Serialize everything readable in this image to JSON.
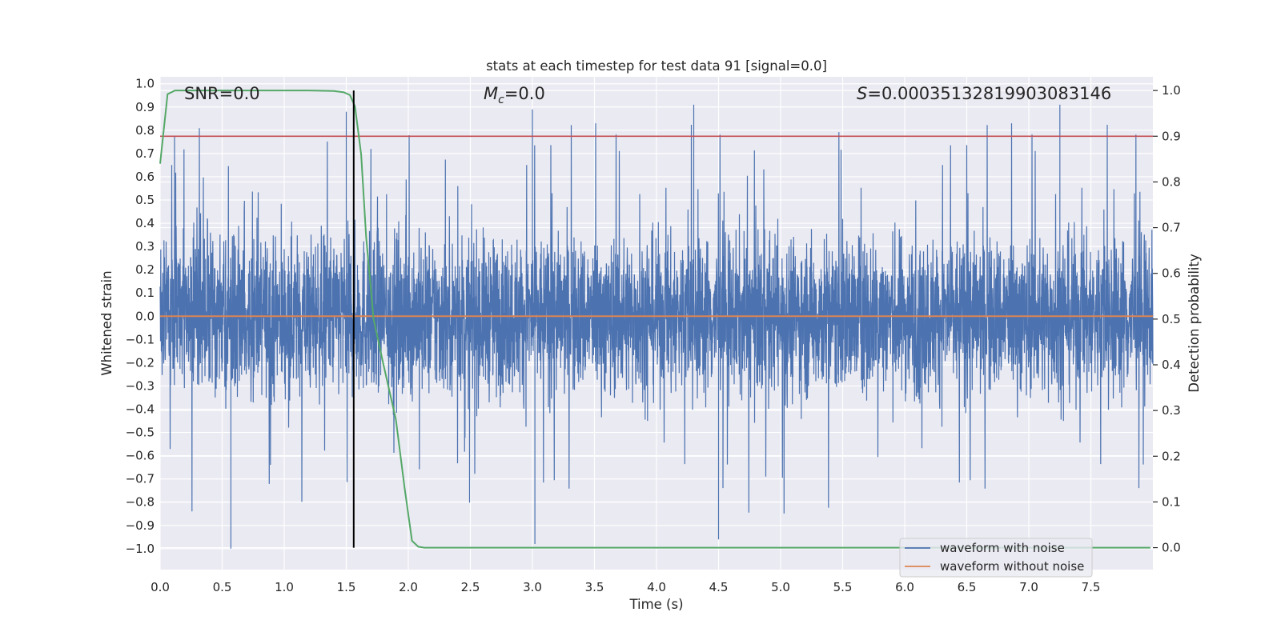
{
  "chart_data": {
    "type": "line",
    "title": "stats at each timestep for test data 91 [signal=0.0]",
    "xlabel": "Time (s)",
    "ylabel": "Whitened strain",
    "y2label": "Detection probability",
    "xlim": [
      0.0,
      8.0
    ],
    "ylim": [
      -1.09,
      1.03
    ],
    "y2lim": [
      -0.048,
      1.03
    ],
    "x_ticks": [
      "0.0",
      "0.5",
      "1.0",
      "1.5",
      "2.0",
      "2.5",
      "3.0",
      "3.5",
      "4.0",
      "4.5",
      "5.0",
      "5.5",
      "6.0",
      "6.5",
      "7.0",
      "7.5"
    ],
    "y_ticks": [
      "1.0",
      "0.9",
      "0.8",
      "0.7",
      "0.6",
      "0.5",
      "0.4",
      "0.3",
      "0.2",
      "0.1",
      "0.0",
      "−0.1",
      "−0.2",
      "−0.3",
      "−0.4",
      "−0.5",
      "−0.6",
      "−0.7",
      "−0.8",
      "−0.9",
      "−1.0"
    ],
    "y2_ticks": [
      "1.0",
      "0.9",
      "0.8",
      "0.7",
      "0.6",
      "0.5",
      "0.4",
      "0.3",
      "0.2",
      "0.1",
      "0.0"
    ],
    "annotations": {
      "snr": "SNR=0.0",
      "mc_symbol": "M",
      "mc_sub": "c",
      "mc_value": "=0.0",
      "s_symbol": "S",
      "s_value": "=0.00035132819903083146"
    },
    "series": [
      {
        "name": "waveform with noise",
        "color": "#4c72b0",
        "kind": "noise",
        "approx_range": [
          -1.0,
          0.91
        ],
        "notable_peaks": [
          [
            1.5,
            0.88
          ],
          [
            3.0,
            0.89
          ],
          [
            4.3,
            0.91
          ],
          [
            7.25,
            0.91
          ],
          [
            0.57,
            -1.0
          ],
          [
            3.02,
            -0.98
          ],
          [
            4.5,
            -0.96
          ]
        ]
      },
      {
        "name": "waveform without noise",
        "color": "#dd8452",
        "kind": "constant",
        "y": 0.0
      },
      {
        "name": "detection probability",
        "color": "#55a868",
        "axis": "right",
        "x": [
          0.0,
          0.06,
          0.12,
          0.2,
          0.4,
          0.8,
          1.2,
          1.4,
          1.48,
          1.53,
          1.57,
          1.62,
          1.66,
          1.72,
          1.8,
          1.9,
          1.97,
          2.03,
          2.08,
          2.13,
          2.2,
          3.0,
          5.0,
          7.98
        ],
        "y": [
          0.84,
          0.992,
          1.0,
          1.0,
          1.0,
          1.0,
          1.0,
          0.999,
          0.996,
          0.99,
          0.965,
          0.86,
          0.68,
          0.5,
          0.4,
          0.28,
          0.13,
          0.015,
          0.002,
          0.0,
          0.0,
          0.0,
          0.0,
          0.0
        ]
      },
      {
        "name": "threshold",
        "color": "#c44e52",
        "axis": "right",
        "kind": "constant",
        "y": 0.9
      },
      {
        "name": "marker",
        "color": "#000000",
        "kind": "vline",
        "x": 1.56
      }
    ],
    "legend": {
      "placement": "lower-right",
      "entries": [
        "waveform with noise",
        "waveform without noise"
      ]
    },
    "grid": true,
    "background": "#eaeaf2"
  }
}
